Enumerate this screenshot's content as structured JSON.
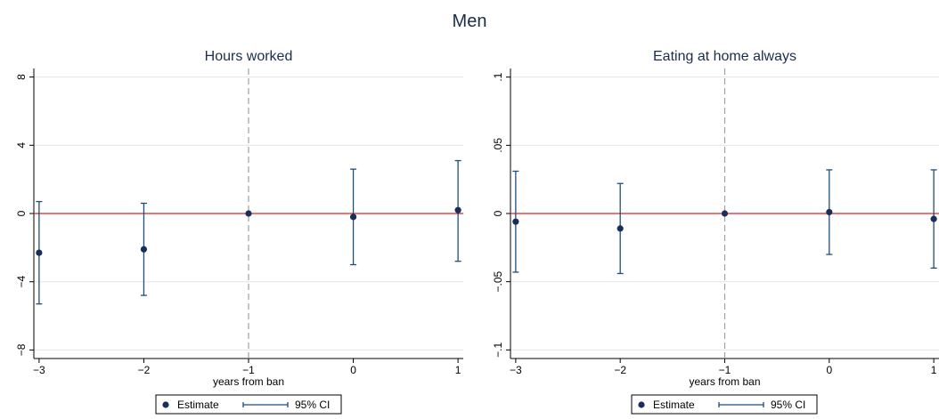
{
  "page_title": "Men",
  "legend": {
    "estimate_label": "Estimate",
    "ci_label": "95% CI"
  },
  "chart_data": [
    {
      "type": "scatter",
      "title": "Hours worked",
      "xlabel": "years from ban",
      "ylabel": "",
      "x": [
        -3,
        -2,
        -1,
        0,
        1
      ],
      "xlim": [
        -3.05,
        1.05
      ],
      "xticks": [
        -3,
        -2,
        -1,
        0,
        1
      ],
      "xtick_labels": [
        "−3",
        "−2",
        "−1",
        "0",
        "1"
      ],
      "ylim": [
        -8.5,
        8.5
      ],
      "yticks": [
        -8,
        -4,
        0,
        4,
        8
      ],
      "ytick_labels": [
        "−8",
        "−4",
        "0",
        "4",
        "8"
      ],
      "grid": true,
      "reference_line_y": 0,
      "reference_line_x": -1,
      "legend_position": "bottom",
      "series": [
        {
          "name": "Estimate",
          "values": [
            -2.3,
            -2.1,
            0.0,
            -0.2,
            0.2
          ],
          "ci_lower": [
            -5.3,
            -4.8,
            0.0,
            -3.0,
            -2.8
          ],
          "ci_upper": [
            0.7,
            0.6,
            0.0,
            2.6,
            3.1
          ]
        }
      ],
      "colors": {
        "marker": "#1a2e5a",
        "ci": "#1f4e79",
        "zero_line": "#e02020",
        "vline": "#a0a0a0",
        "grid": "#e6e6e6"
      }
    },
    {
      "type": "scatter",
      "title": "Eating at home always",
      "xlabel": "years from ban",
      "ylabel": "",
      "x": [
        -3,
        -2,
        -1,
        0,
        1
      ],
      "xlim": [
        -3.05,
        1.05
      ],
      "xticks": [
        -3,
        -2,
        -1,
        0,
        1
      ],
      "xtick_labels": [
        "−3",
        "−2",
        "−1",
        "0",
        "1"
      ],
      "ylim": [
        -0.1063,
        0.1063
      ],
      "yticks": [
        -0.1,
        -0.05,
        0,
        0.05,
        0.1
      ],
      "ytick_labels": [
        "−.1",
        "−.05",
        "0",
        ".05",
        ".1"
      ],
      "grid": true,
      "reference_line_y": 0,
      "reference_line_x": -1,
      "legend_position": "bottom",
      "series": [
        {
          "name": "Estimate",
          "values": [
            -0.006,
            -0.011,
            0.0,
            0.001,
            -0.004
          ],
          "ci_lower": [
            -0.043,
            -0.044,
            0.0,
            -0.03,
            -0.04
          ],
          "ci_upper": [
            0.031,
            0.022,
            0.0,
            0.032,
            0.032
          ]
        }
      ],
      "colors": {
        "marker": "#1a2e5a",
        "ci": "#1f4e79",
        "zero_line": "#e02020",
        "vline": "#a0a0a0",
        "grid": "#e6e6e6"
      }
    }
  ]
}
